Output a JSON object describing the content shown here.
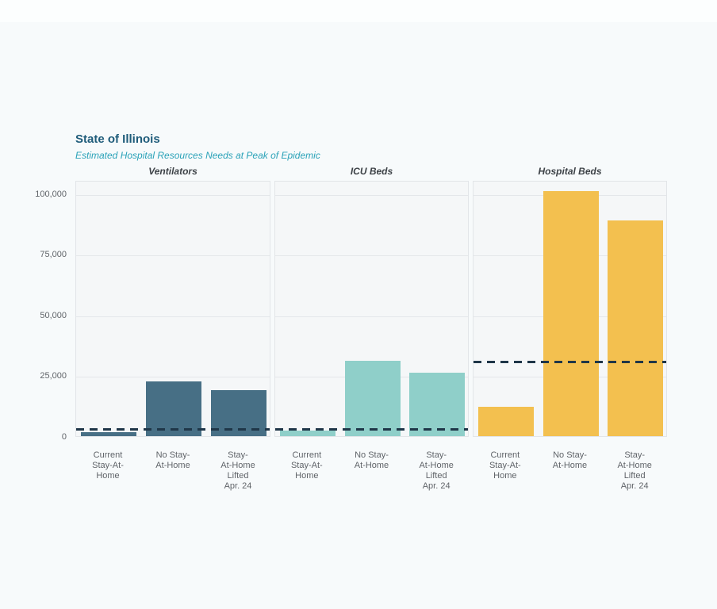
{
  "chart_data": {
    "type": "bar",
    "title": "State of Illinois",
    "subtitle": "Estimated Hospital Resources Needs at Peak of Epidemic",
    "categories": [
      [
        "Current",
        "Stay-At-",
        "Home"
      ],
      [
        "No Stay-",
        "At-Home"
      ],
      [
        "Stay-",
        "At-Home",
        "Lifted",
        "Apr. 24"
      ]
    ],
    "panels": [
      {
        "label": "Ventilators",
        "bar_color": "#476f85",
        "values": [
          1600,
          22500,
          19000
        ],
        "capacity_line": 3500
      },
      {
        "label": "ICU Beds",
        "bar_color": "#8fcfc9",
        "values": [
          2200,
          31000,
          26000
        ],
        "capacity_line": 3500
      },
      {
        "label": "Hospital Beds",
        "bar_color": "#f3c04f",
        "values": [
          12000,
          101000,
          89000
        ],
        "capacity_line": 31500
      }
    ],
    "ylabel": "",
    "xlabel": "",
    "ylim": [
      0,
      105500
    ],
    "yticks": [
      {
        "value": 0,
        "label": "0"
      },
      {
        "value": 25000,
        "label": "25,000"
      },
      {
        "value": 50000,
        "label": "50,000"
      },
      {
        "value": 75000,
        "label": "75,000"
      },
      {
        "value": 100000,
        "label": "100,000"
      }
    ],
    "grid": true,
    "legend": false,
    "capacity_line_color": "#1f3648",
    "capacity_line_style": "dashed",
    "colors": {
      "title": "#1f5c7a",
      "subtitle": "#2aa2b8",
      "panel_title": "#3d4247",
      "axis_text": "#606469",
      "panel_background": "#f5f7f8",
      "page_background": "#f7fafb"
    }
  }
}
